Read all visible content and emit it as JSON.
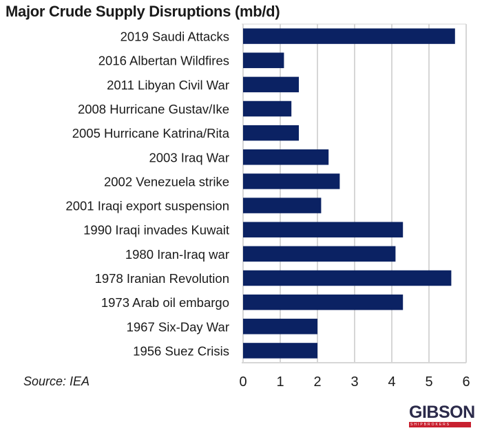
{
  "chart_data": {
    "type": "bar",
    "orientation": "horizontal",
    "title": "Major Crude Supply Disruptions (mb/d)",
    "xlabel": "",
    "ylabel": "",
    "xlim": [
      0,
      6
    ],
    "xticks": [
      "0",
      "1",
      "2",
      "3",
      "4",
      "5",
      "6"
    ],
    "grid": true,
    "bar_color": "#0b2263",
    "categories": [
      "2019 Saudi Attacks",
      "2016 Albertan Wildfires",
      "2011 Libyan Civil War",
      "2008 Hurricane Gustav/Ike",
      "2005 Hurricane Katrina/Rita",
      "2003 Iraq War",
      "2002 Venezuela strike",
      "2001 Iraqi export suspension",
      "1990 Iraqi invades Kuwait",
      "1980 Iran-Iraq war",
      "1978 Iranian Revolution",
      "1973 Arab oil embargo",
      "1967 Six-Day War",
      "1956 Suez Crisis"
    ],
    "values": [
      5.7,
      1.1,
      1.5,
      1.3,
      1.5,
      2.3,
      2.6,
      2.1,
      4.3,
      4.1,
      5.6,
      4.3,
      2.0,
      2.0
    ]
  },
  "source": "Source: IEA",
  "logo": {
    "name": "GIBSON",
    "tagline": "SHIPBROKERS",
    "color": "#2b2a4a",
    "accent": "#c8202f"
  }
}
